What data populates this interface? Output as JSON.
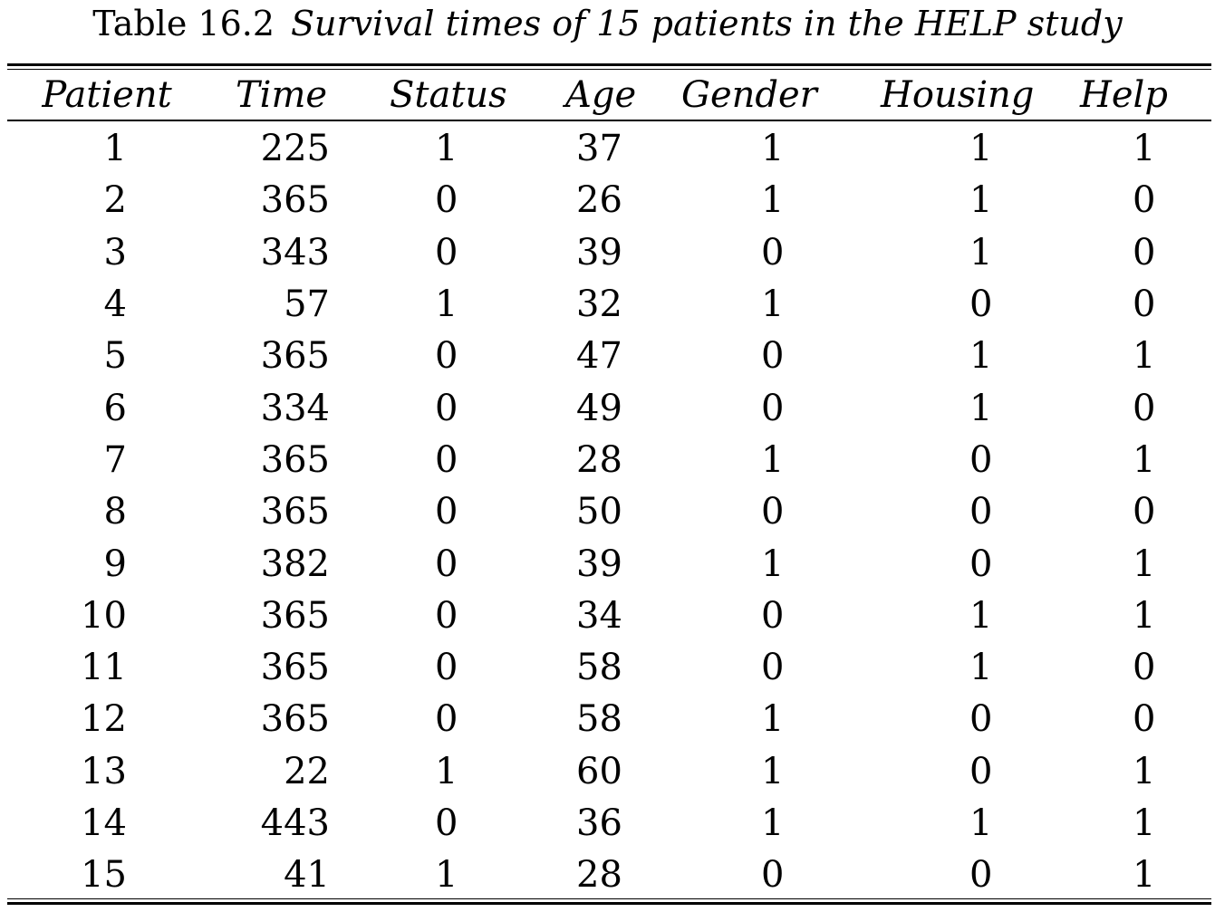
{
  "caption": {
    "label": "Table 16.2",
    "text": "Survival times of 15 patients in the HELP study"
  },
  "table": {
    "columns": [
      "Patient",
      "Time",
      "Status",
      "Age",
      "Gender",
      "Housing",
      "Help"
    ],
    "rows": [
      [
        1,
        225,
        1,
        37,
        1,
        1,
        1
      ],
      [
        2,
        365,
        0,
        26,
        1,
        1,
        0
      ],
      [
        3,
        343,
        0,
        39,
        0,
        1,
        0
      ],
      [
        4,
        57,
        1,
        32,
        1,
        0,
        0
      ],
      [
        5,
        365,
        0,
        47,
        0,
        1,
        1
      ],
      [
        6,
        334,
        0,
        49,
        0,
        1,
        0
      ],
      [
        7,
        365,
        0,
        28,
        1,
        0,
        1
      ],
      [
        8,
        365,
        0,
        50,
        0,
        0,
        0
      ],
      [
        9,
        382,
        0,
        39,
        1,
        0,
        1
      ],
      [
        10,
        365,
        0,
        34,
        0,
        1,
        1
      ],
      [
        11,
        365,
        0,
        58,
        0,
        1,
        0
      ],
      [
        12,
        365,
        0,
        58,
        1,
        0,
        0
      ],
      [
        13,
        22,
        1,
        60,
        1,
        0,
        1
      ],
      [
        14,
        443,
        0,
        36,
        1,
        1,
        1
      ],
      [
        15,
        41,
        1,
        28,
        0,
        0,
        1
      ]
    ]
  }
}
